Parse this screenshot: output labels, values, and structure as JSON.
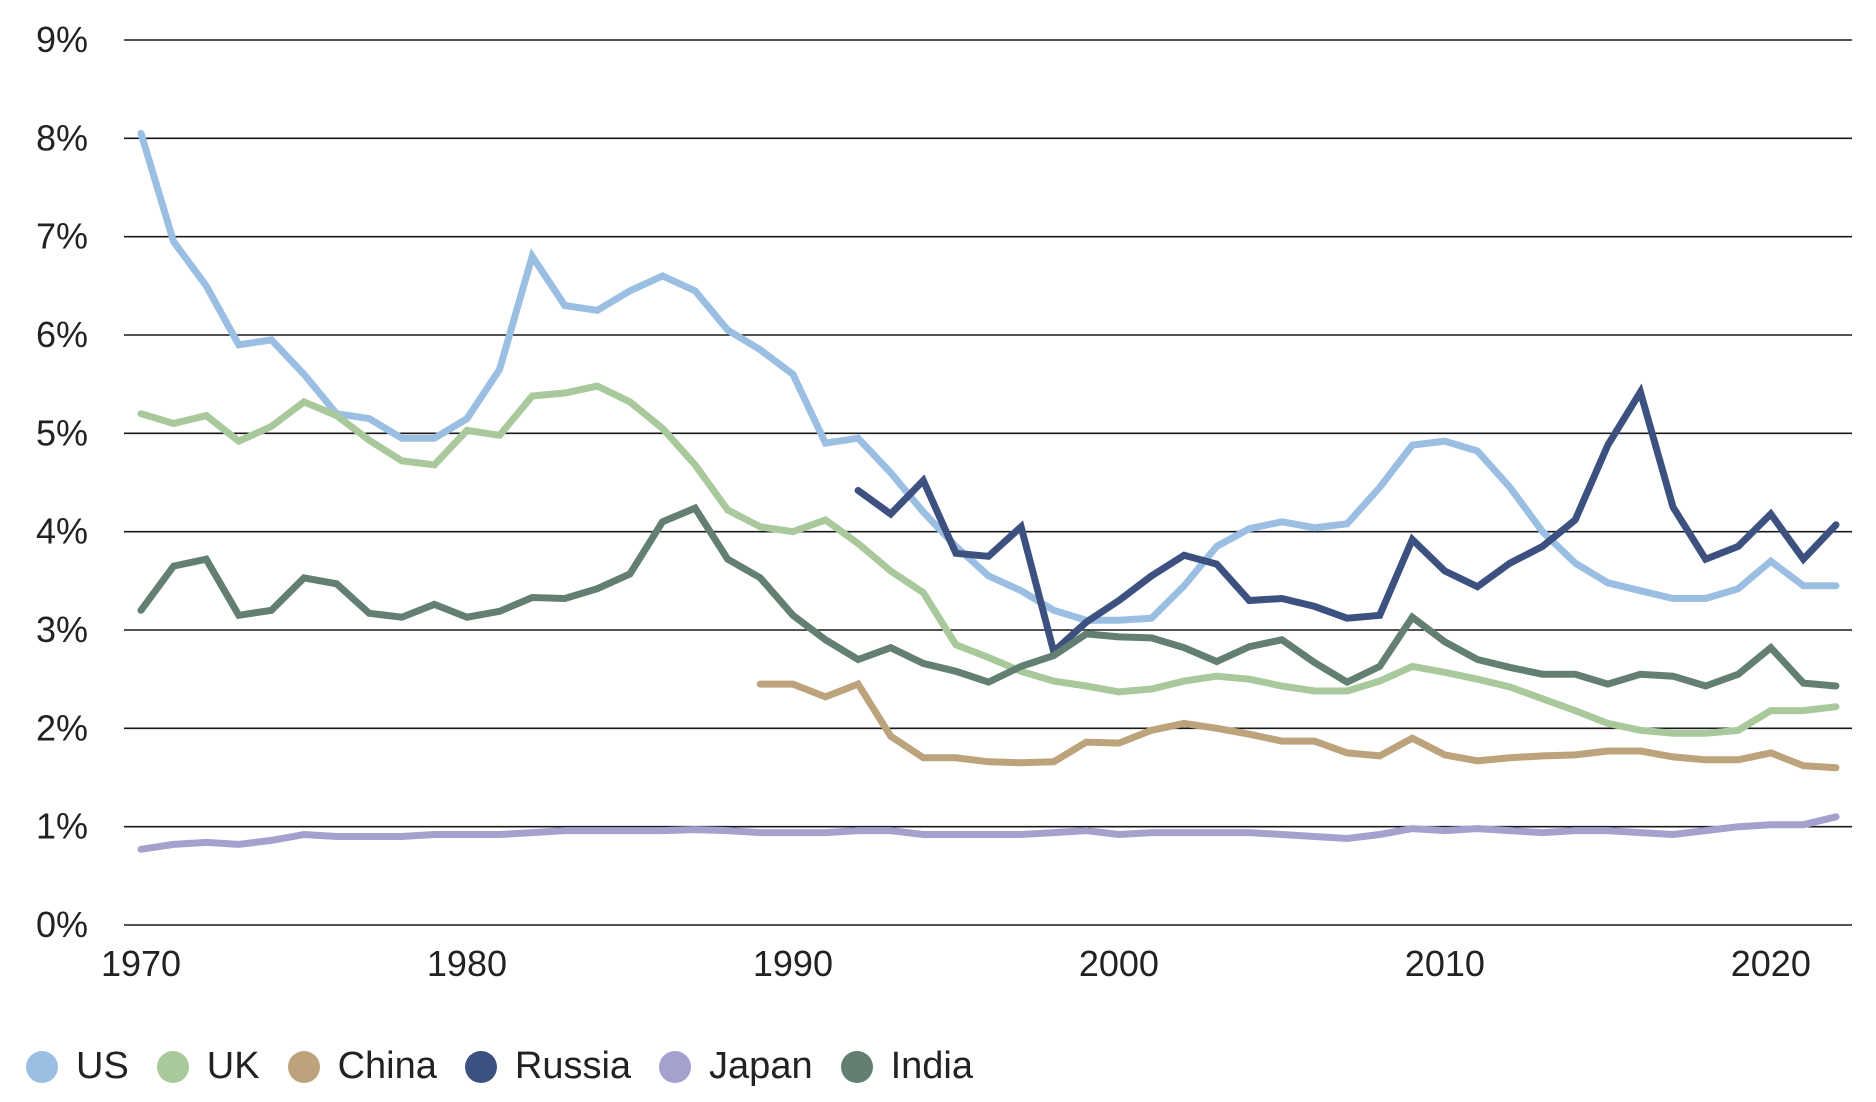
{
  "chart_data": {
    "type": "line",
    "title": "",
    "xlabel": "",
    "ylabel": "",
    "xlim": [
      1970,
      2022
    ],
    "ylim": [
      0,
      9
    ],
    "grid": true,
    "legend_position": "bottom",
    "x_ticks": [
      {
        "value": 1970,
        "label": "1970"
      },
      {
        "value": 1980,
        "label": "1980"
      },
      {
        "value": 1990,
        "label": "1990"
      },
      {
        "value": 2000,
        "label": "2000"
      },
      {
        "value": 2010,
        "label": "2010"
      },
      {
        "value": 2020,
        "label": "2020"
      }
    ],
    "y_ticks": [
      {
        "value": 0,
        "label": "0%"
      },
      {
        "value": 1,
        "label": "1%"
      },
      {
        "value": 2,
        "label": "2%"
      },
      {
        "value": 3,
        "label": "3%"
      },
      {
        "value": 4,
        "label": "4%"
      },
      {
        "value": 5,
        "label": "5%"
      },
      {
        "value": 6,
        "label": "6%"
      },
      {
        "value": 7,
        "label": "7%"
      },
      {
        "value": 8,
        "label": "8%"
      },
      {
        "value": 9,
        "label": "9%"
      }
    ],
    "series": [
      {
        "name": "US",
        "color": "#9bbfe3",
        "x": [
          1970,
          1971,
          1972,
          1973,
          1974,
          1975,
          1976,
          1977,
          1978,
          1979,
          1980,
          1981,
          1982,
          1983,
          1984,
          1985,
          1986,
          1987,
          1988,
          1989,
          1990,
          1991,
          1992,
          1993,
          1994,
          1995,
          1996,
          1997,
          1998,
          1999,
          2000,
          2001,
          2002,
          2003,
          2004,
          2005,
          2006,
          2007,
          2008,
          2009,
          2010,
          2011,
          2012,
          2013,
          2014,
          2015,
          2016,
          2017,
          2018,
          2019,
          2020,
          2021,
          2022
        ],
        "y": [
          8.05,
          6.95,
          6.5,
          5.9,
          5.95,
          5.6,
          5.2,
          5.15,
          4.95,
          4.95,
          5.15,
          5.65,
          6.8,
          6.3,
          6.25,
          6.45,
          6.6,
          6.45,
          6.05,
          5.85,
          5.6,
          4.9,
          4.95,
          4.6,
          4.2,
          3.85,
          3.55,
          3.4,
          3.2,
          3.1,
          3.1,
          3.12,
          3.45,
          3.85,
          4.03,
          4.1,
          4.04,
          4.08,
          4.45,
          4.88,
          4.92,
          4.82,
          4.45,
          4.0,
          3.68,
          3.48,
          3.4,
          3.32,
          3.32,
          3.42,
          3.7,
          3.45,
          3.45
        ]
      },
      {
        "name": "UK",
        "color": "#a9c99d",
        "x": [
          1970,
          1971,
          1972,
          1973,
          1974,
          1975,
          1976,
          1977,
          1978,
          1979,
          1980,
          1981,
          1982,
          1983,
          1984,
          1985,
          1986,
          1987,
          1988,
          1989,
          1990,
          1991,
          1992,
          1993,
          1994,
          1995,
          1996,
          1997,
          1998,
          1999,
          2000,
          2001,
          2002,
          2003,
          2004,
          2005,
          2006,
          2007,
          2008,
          2009,
          2010,
          2011,
          2012,
          2013,
          2014,
          2015,
          2016,
          2017,
          2018,
          2019,
          2020,
          2021,
          2022
        ],
        "y": [
          5.2,
          5.1,
          5.18,
          4.92,
          5.07,
          5.32,
          5.18,
          4.93,
          4.72,
          4.68,
          5.03,
          4.98,
          5.38,
          5.41,
          5.48,
          5.32,
          5.05,
          4.68,
          4.22,
          4.05,
          4.0,
          4.12,
          3.88,
          3.6,
          3.38,
          2.85,
          2.72,
          2.58,
          2.48,
          2.43,
          2.37,
          2.4,
          2.48,
          2.53,
          2.5,
          2.43,
          2.38,
          2.38,
          2.48,
          2.63,
          2.57,
          2.5,
          2.42,
          2.3,
          2.18,
          2.05,
          1.98,
          1.95,
          1.95,
          1.98,
          2.18,
          2.18,
          2.22
        ]
      },
      {
        "name": "China",
        "color": "#bca37c",
        "x": [
          1989,
          1990,
          1991,
          1992,
          1993,
          1994,
          1995,
          1996,
          1997,
          1998,
          1999,
          2000,
          2001,
          2002,
          2003,
          2004,
          2005,
          2006,
          2007,
          2008,
          2009,
          2010,
          2011,
          2012,
          2013,
          2014,
          2015,
          2016,
          2017,
          2018,
          2019,
          2020,
          2021,
          2022
        ],
        "y": [
          2.45,
          2.45,
          2.32,
          2.45,
          1.92,
          1.7,
          1.7,
          1.66,
          1.65,
          1.66,
          1.86,
          1.85,
          1.98,
          2.05,
          2.0,
          1.94,
          1.87,
          1.87,
          1.75,
          1.72,
          1.9,
          1.73,
          1.67,
          1.7,
          1.72,
          1.73,
          1.77,
          1.77,
          1.71,
          1.68,
          1.68,
          1.75,
          1.62,
          1.6
        ]
      },
      {
        "name": "Russia",
        "color": "#3d5181",
        "x": [
          1992,
          1993,
          1994,
          1995,
          1996,
          1997,
          1998,
          1999,
          2000,
          2001,
          2002,
          2003,
          2004,
          2005,
          2006,
          2007,
          2008,
          2009,
          2010,
          2011,
          2012,
          2013,
          2014,
          2015,
          2016,
          2017,
          2018,
          2019,
          2020,
          2021,
          2022
        ],
        "y": [
          4.42,
          4.18,
          4.52,
          3.78,
          3.75,
          4.05,
          2.78,
          3.08,
          3.3,
          3.55,
          3.76,
          3.67,
          3.3,
          3.32,
          3.24,
          3.12,
          3.15,
          3.92,
          3.6,
          3.44,
          3.68,
          3.85,
          4.12,
          4.88,
          5.42,
          4.25,
          3.72,
          3.85,
          4.18,
          3.72,
          4.07
        ]
      },
      {
        "name": "Japan",
        "color": "#a5a1cf",
        "x": [
          1970,
          1971,
          1972,
          1973,
          1974,
          1975,
          1976,
          1977,
          1978,
          1979,
          1980,
          1981,
          1982,
          1983,
          1984,
          1985,
          1986,
          1987,
          1988,
          1989,
          1990,
          1991,
          1992,
          1993,
          1994,
          1995,
          1996,
          1997,
          1998,
          1999,
          2000,
          2001,
          2002,
          2003,
          2004,
          2005,
          2006,
          2007,
          2008,
          2009,
          2010,
          2011,
          2012,
          2013,
          2014,
          2015,
          2016,
          2017,
          2018,
          2019,
          2020,
          2021,
          2022
        ],
        "y": [
          0.77,
          0.82,
          0.84,
          0.82,
          0.86,
          0.92,
          0.9,
          0.9,
          0.9,
          0.92,
          0.92,
          0.92,
          0.94,
          0.96,
          0.96,
          0.96,
          0.96,
          0.97,
          0.96,
          0.94,
          0.94,
          0.94,
          0.96,
          0.96,
          0.92,
          0.92,
          0.92,
          0.92,
          0.94,
          0.96,
          0.92,
          0.94,
          0.94,
          0.94,
          0.94,
          0.92,
          0.9,
          0.88,
          0.92,
          0.98,
          0.96,
          0.98,
          0.96,
          0.94,
          0.96,
          0.96,
          0.94,
          0.92,
          0.96,
          1.0,
          1.02,
          1.02,
          1.1
        ]
      },
      {
        "name": "India",
        "color": "#627f71",
        "x": [
          1970,
          1971,
          1972,
          1973,
          1974,
          1975,
          1976,
          1977,
          1978,
          1979,
          1980,
          1981,
          1982,
          1983,
          1984,
          1985,
          1986,
          1987,
          1988,
          1989,
          1990,
          1991,
          1992,
          1993,
          1994,
          1995,
          1996,
          1997,
          1998,
          1999,
          2000,
          2001,
          2002,
          2003,
          2004,
          2005,
          2006,
          2007,
          2008,
          2009,
          2010,
          2011,
          2012,
          2013,
          2014,
          2015,
          2016,
          2017,
          2018,
          2019,
          2020,
          2021,
          2022
        ],
        "y": [
          3.2,
          3.65,
          3.72,
          3.15,
          3.2,
          3.53,
          3.47,
          3.17,
          3.13,
          3.26,
          3.13,
          3.19,
          3.33,
          3.32,
          3.42,
          3.57,
          4.1,
          4.24,
          3.72,
          3.53,
          3.15,
          2.9,
          2.7,
          2.82,
          2.66,
          2.58,
          2.47,
          2.63,
          2.74,
          2.96,
          2.93,
          2.92,
          2.82,
          2.68,
          2.83,
          2.9,
          2.67,
          2.47,
          2.63,
          3.13,
          2.88,
          2.7,
          2.62,
          2.55,
          2.55,
          2.45,
          2.55,
          2.53,
          2.43,
          2.55,
          2.82,
          2.46,
          2.43
        ]
      }
    ]
  }
}
